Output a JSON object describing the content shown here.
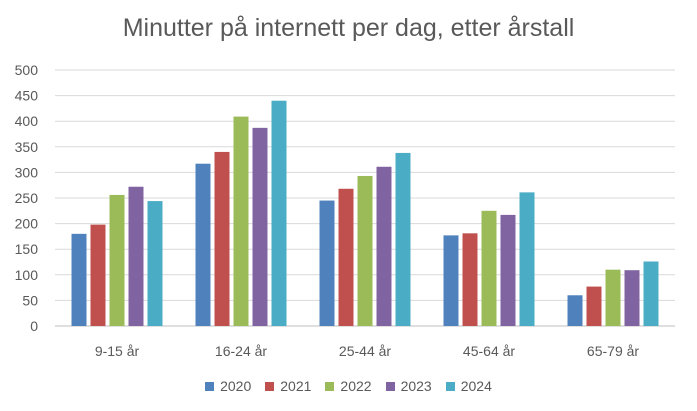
{
  "chart_data": {
    "type": "bar",
    "title": "Minutter på internett per dag, etter årstall",
    "xlabel": "",
    "ylabel": "",
    "categories": [
      "9-15 år",
      "16-24 år",
      "25-44 år",
      "45-64 år",
      "65-79 år"
    ],
    "series": [
      {
        "name": "2020",
        "color": "#4F81BD",
        "values": [
          180,
          317,
          245,
          177,
          60
        ]
      },
      {
        "name": "2021",
        "color": "#C0504D",
        "values": [
          198,
          340,
          268,
          181,
          77
        ]
      },
      {
        "name": "2022",
        "color": "#9BBB59",
        "values": [
          256,
          409,
          293,
          225,
          110
        ]
      },
      {
        "name": "2023",
        "color": "#8064A2",
        "values": [
          272,
          387,
          311,
          217,
          109
        ]
      },
      {
        "name": "2024",
        "color": "#4BACC6",
        "values": [
          244,
          440,
          338,
          261,
          126
        ]
      }
    ],
    "ylim": [
      0,
      500
    ],
    "yticks": [
      0,
      50,
      100,
      150,
      200,
      250,
      300,
      350,
      400,
      450,
      500
    ],
    "grid": true,
    "legend_position": "bottom"
  }
}
